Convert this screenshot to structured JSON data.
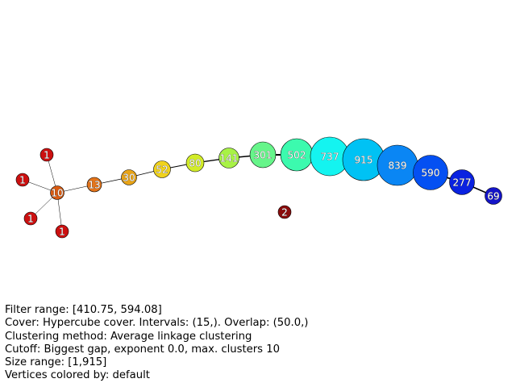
{
  "graph": {
    "nodes": [
      {
        "id": "n1a",
        "label": "1",
        "color": "#cc1010"
      },
      {
        "id": "n1b",
        "label": "1",
        "color": "#cc1010"
      },
      {
        "id": "n1c",
        "label": "1",
        "color": "#cc1010"
      },
      {
        "id": "n1d",
        "label": "1",
        "color": "#cc1010"
      },
      {
        "id": "n10",
        "label": "10",
        "color": "#d95a10"
      },
      {
        "id": "n13",
        "label": "13",
        "color": "#e4741a"
      },
      {
        "id": "n30",
        "label": "30",
        "color": "#e9a416"
      },
      {
        "id": "n52",
        "label": "52",
        "color": "#f0d21c"
      },
      {
        "id": "n80",
        "label": "80",
        "color": "#d2ec28"
      },
      {
        "id": "n141",
        "label": "141",
        "color": "#a8f246"
      },
      {
        "id": "n301",
        "label": "301",
        "color": "#66f58a"
      },
      {
        "id": "n502",
        "label": "502",
        "color": "#3cfaae"
      },
      {
        "id": "n737",
        "label": "737",
        "color": "#14f4f0"
      },
      {
        "id": "n915",
        "label": "915",
        "color": "#00c2f4"
      },
      {
        "id": "n839",
        "label": "839",
        "color": "#0a86f4"
      },
      {
        "id": "n590",
        "label": "590",
        "color": "#0450f2"
      },
      {
        "id": "n277",
        "label": "277",
        "color": "#0a22e0"
      },
      {
        "id": "n69",
        "label": "69",
        "color": "#1414c8"
      },
      {
        "id": "n2",
        "label": "2",
        "color": "#8a0c0c"
      }
    ],
    "edges": [
      [
        "n1a",
        "n10"
      ],
      [
        "n1b",
        "n10"
      ],
      [
        "n1c",
        "n10"
      ],
      [
        "n1d",
        "n10"
      ],
      [
        "n10",
        "n13"
      ],
      [
        "n13",
        "n30"
      ],
      [
        "n30",
        "n52"
      ],
      [
        "n52",
        "n80"
      ],
      [
        "n80",
        "n141"
      ],
      [
        "n141",
        "n301"
      ],
      [
        "n301",
        "n502"
      ],
      [
        "n502",
        "n737"
      ],
      [
        "n737",
        "n915"
      ],
      [
        "n915",
        "n839"
      ],
      [
        "n839",
        "n590"
      ],
      [
        "n590",
        "n277"
      ],
      [
        "n277",
        "n69"
      ]
    ]
  },
  "info": {
    "filter_range": "Filter range: [410.75, 594.08]",
    "cover": "Cover: Hypercube cover. Intervals: (15,). Overlap: (50.0,)",
    "clustering": "Clustering method: Average linkage clustering",
    "cutoff": "Cutoff: Biggest gap, exponent 0.0, max. clusters 10",
    "size_range": "Size range: [1,915]",
    "vertex_color": "Vertices colored by: default"
  }
}
